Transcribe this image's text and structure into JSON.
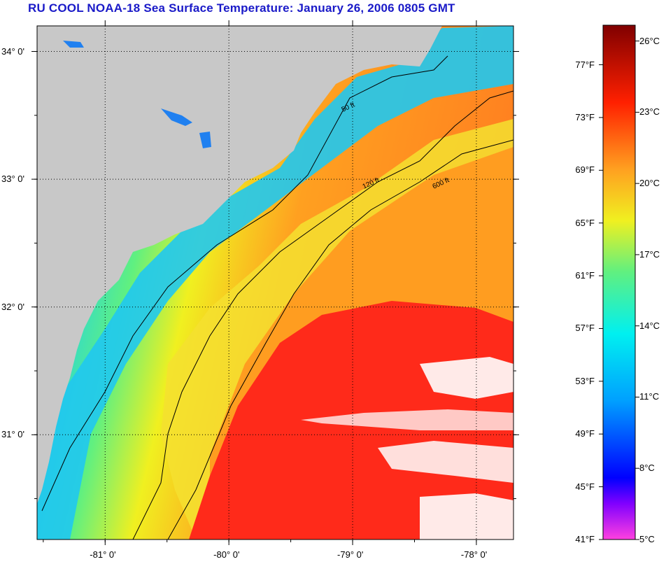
{
  "title": "RU COOL  NOAA-18  Sea Surface Temperature:  January 26, 2006 0805 GMT",
  "lat_labels": [
    {
      "value": 34,
      "text": "34° 0'"
    },
    {
      "value": 33,
      "text": "33° 0'"
    },
    {
      "value": 32,
      "text": "32° 0'"
    },
    {
      "value": 31,
      "text": "31° 0'"
    }
  ],
  "lon_labels": [
    {
      "value": -81,
      "text": "-81° 0'"
    },
    {
      "value": -80,
      "text": "-80° 0'"
    },
    {
      "value": -79,
      "text": "-79° 0'"
    },
    {
      "value": -78,
      "text": "-78° 0'"
    }
  ],
  "map_extent": {
    "lon_min": -81.55,
    "lon_max": -77.7,
    "lat_min": 30.18,
    "lat_max": 34.2
  },
  "contour_labels": [
    "50 ft",
    "120 ft",
    "600 ft"
  ],
  "colorbar": {
    "f_labels": [
      "77°F",
      "73°F",
      "69°F",
      "65°F",
      "61°F",
      "57°F",
      "53°F",
      "49°F",
      "45°F",
      "41°F"
    ],
    "c_labels": [
      "26°C",
      "23°C",
      "20°C",
      "17°C",
      "14°C",
      "11°C",
      "8°C",
      "5°C"
    ],
    "f_range": [
      41,
      80
    ],
    "colors": {
      "land": "#c8c8c8",
      "gulf_stream": "#ff2a1a",
      "shelf_cold": "#1ad0f0"
    }
  }
}
